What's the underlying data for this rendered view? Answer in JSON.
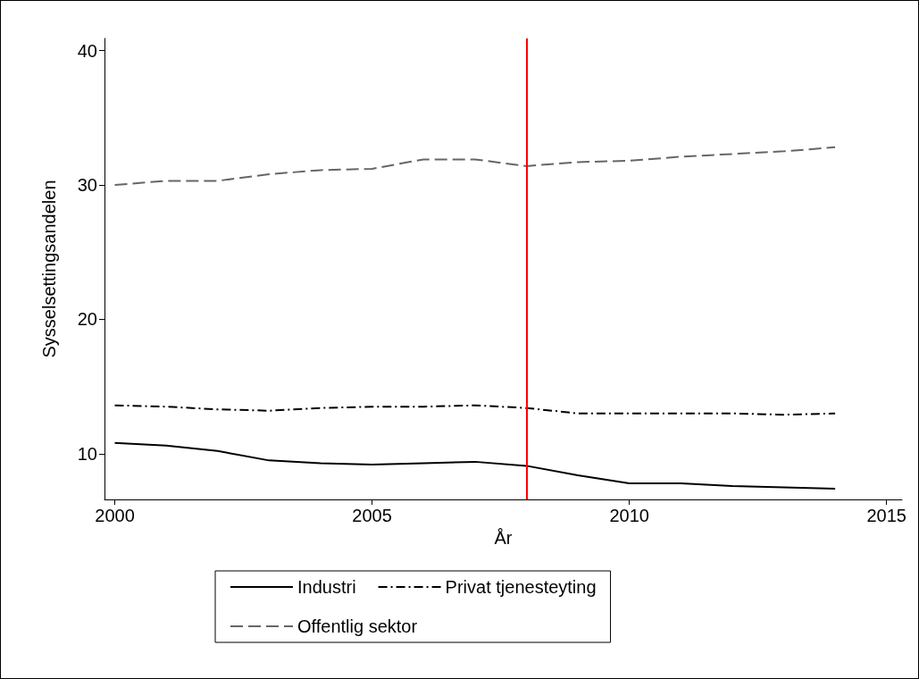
{
  "chart_data": {
    "type": "line",
    "xlabel": "År",
    "ylabel": "Sysselsettingsandelen",
    "x": [
      2000,
      2001,
      2002,
      2003,
      2004,
      2005,
      2006,
      2007,
      2008,
      2009,
      2010,
      2011,
      2012,
      2013,
      2014
    ],
    "series": [
      {
        "name": "Industri",
        "color": "#000000",
        "line_style": "solid",
        "values": [
          10.8,
          10.6,
          10.2,
          9.5,
          9.3,
          9.2,
          9.3,
          9.4,
          9.1,
          8.4,
          7.8,
          7.8,
          7.6,
          7.5,
          7.4
        ]
      },
      {
        "name": "Privat tjenesteyting",
        "color": "#000000",
        "line_style": "dashdot",
        "values": [
          13.6,
          13.5,
          13.3,
          13.2,
          13.4,
          13.5,
          13.5,
          13.6,
          13.4,
          13.0,
          13.0,
          13.0,
          13.0,
          12.9,
          13.0
        ]
      },
      {
        "name": "Offentlig sektor",
        "color": "#666666",
        "line_style": "dashed",
        "values": [
          30.0,
          30.3,
          30.3,
          30.8,
          31.1,
          31.2,
          31.9,
          31.9,
          31.4,
          31.7,
          31.8,
          32.1,
          32.3,
          32.5,
          32.8
        ]
      }
    ],
    "xlim": [
      1999.8,
      2015.3
    ],
    "xticks": [
      2000,
      2005,
      2010,
      2015
    ],
    "ylim": [
      6.6,
      40.9
    ],
    "yticks": [
      10,
      20,
      30,
      40
    ],
    "ref_lines": [
      {
        "axis": "x",
        "value": 2008,
        "color": "#ff0000"
      }
    ],
    "grid": false,
    "legend": "bottom",
    "marker": "none"
  }
}
